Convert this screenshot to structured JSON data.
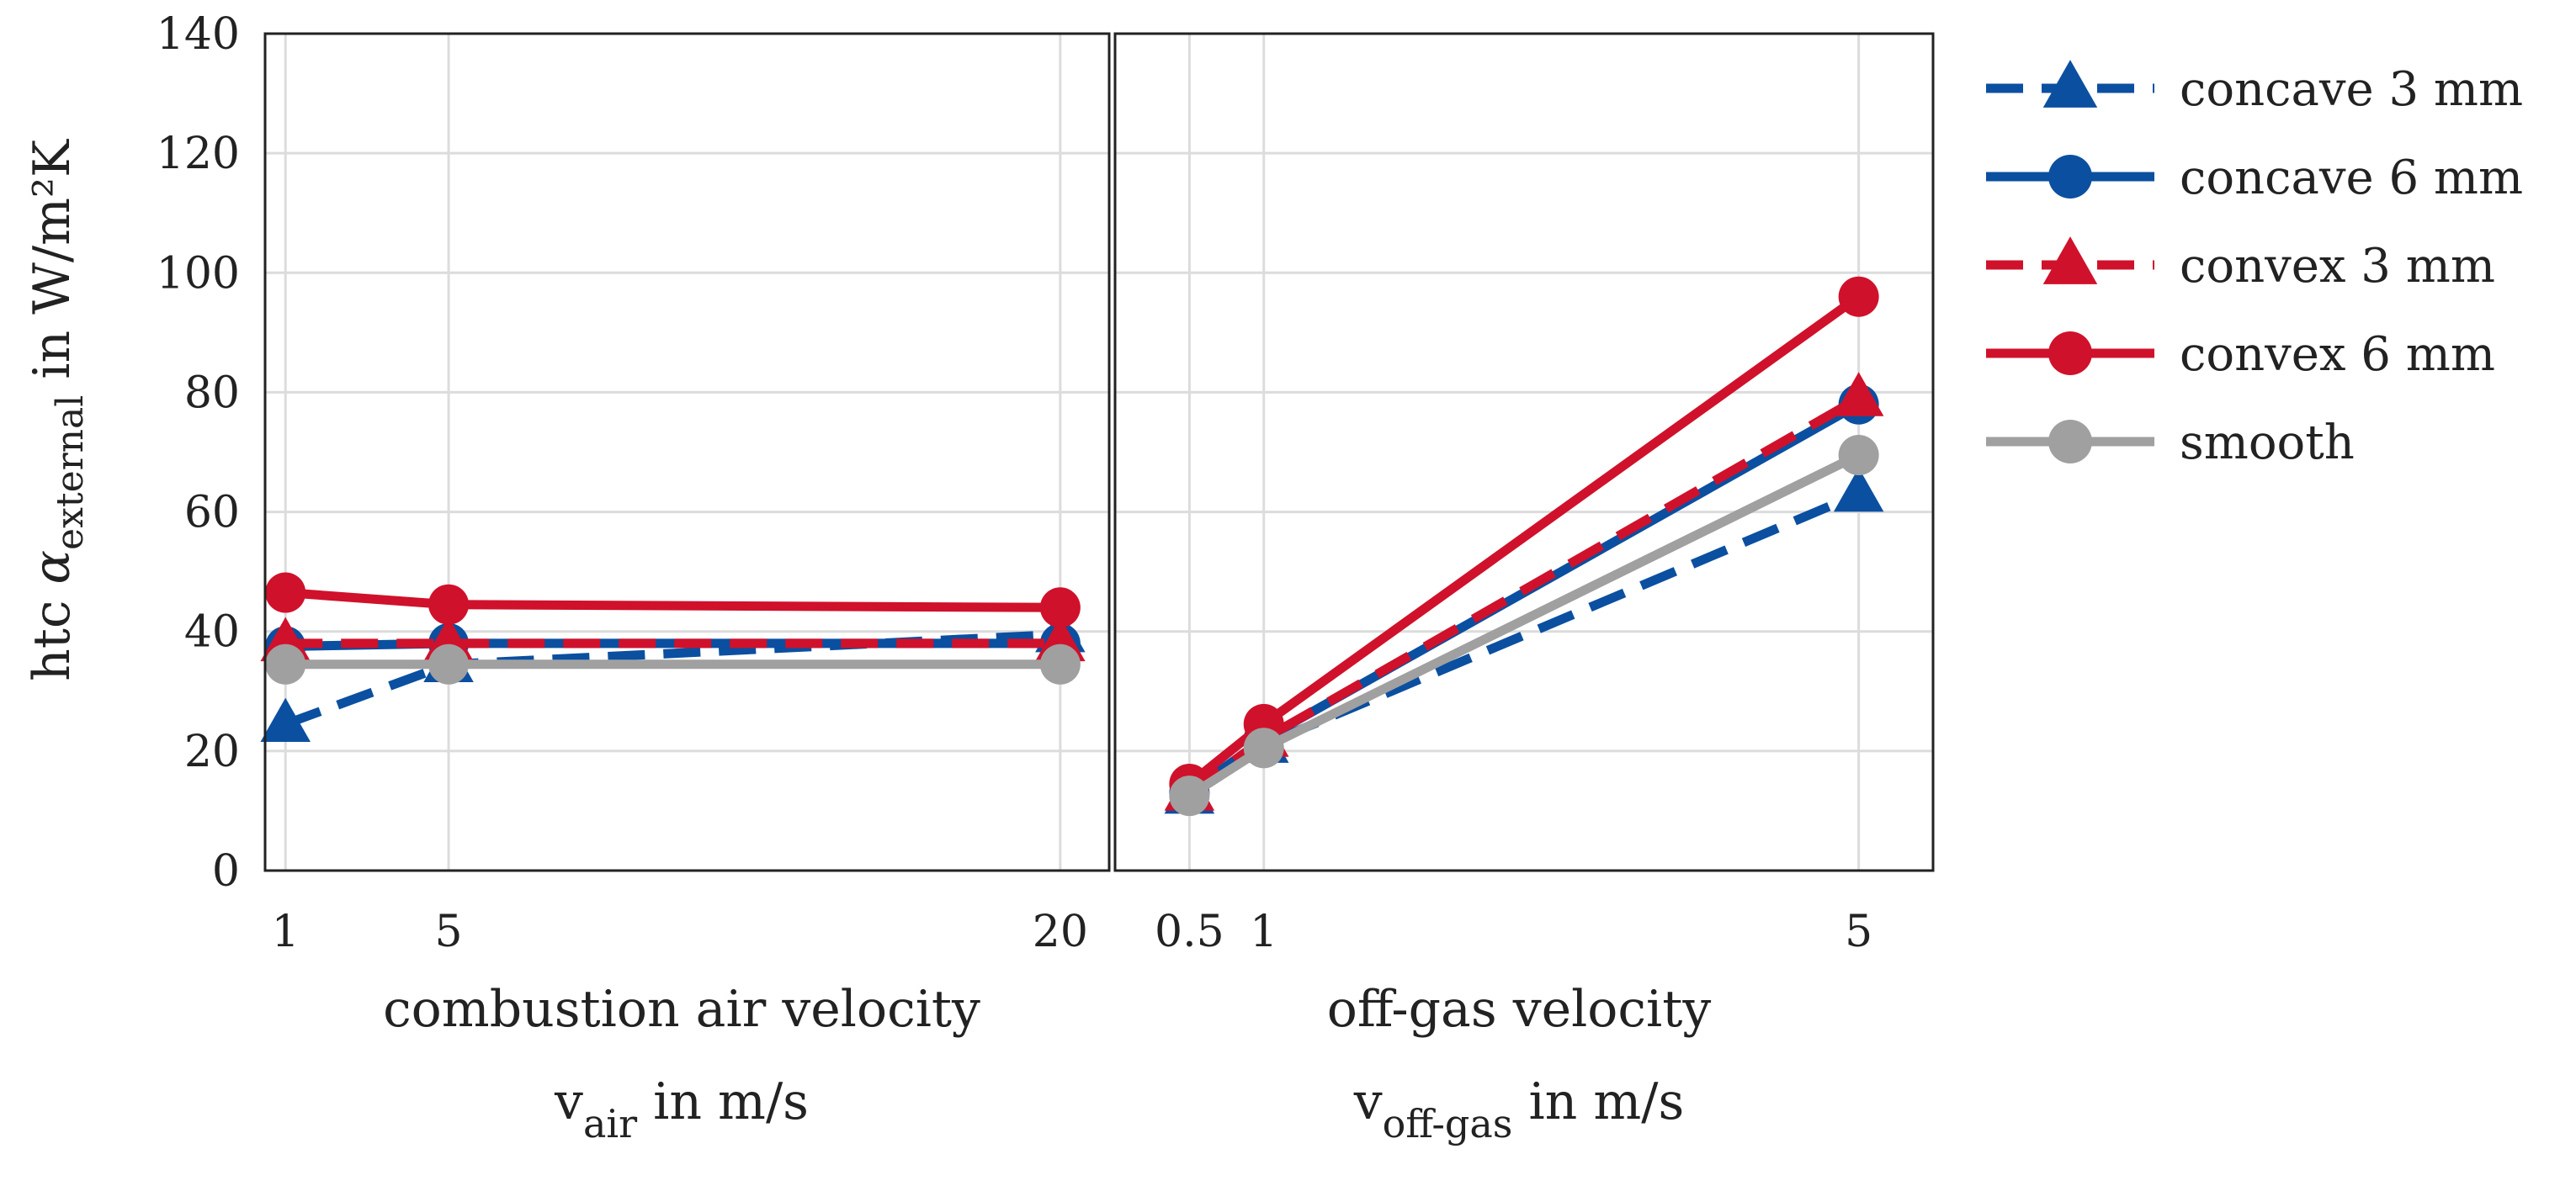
{
  "chart_data": {
    "type": "line",
    "ylabel_main": "htc ",
    "ylabel_alpha": "α",
    "ylabel_sub": "external",
    "ylabel_unit": " in W/m²K",
    "ylim": [
      0,
      140
    ],
    "yticks": [
      0,
      20,
      40,
      60,
      80,
      100,
      120,
      140
    ],
    "grid": true,
    "legend_position": "right",
    "panels": [
      {
        "id": "air",
        "xlabel_line1": "combustion air velocity",
        "xlabel_var": "v",
        "xlabel_sub": "air",
        "xlabel_unit": " in m/s",
        "xlim": [
          0.5,
          21.2
        ],
        "xticks": [
          1,
          5,
          20
        ],
        "x": [
          1,
          5,
          20
        ],
        "series": [
          {
            "name": "concave 3 mm",
            "values": [
              24.5,
              34.5,
              39.5
            ]
          },
          {
            "name": "concave 6 mm",
            "values": [
              37.5,
              38,
              38
            ]
          },
          {
            "name": "convex 3 mm",
            "values": [
              38,
              38,
              38
            ]
          },
          {
            "name": "convex 6 mm",
            "values": [
              46.5,
              44.5,
              44
            ]
          },
          {
            "name": "smooth",
            "values": [
              34.5,
              34.5,
              34.5
            ]
          }
        ]
      },
      {
        "id": "offgas",
        "xlabel_line1": "off-gas velocity",
        "xlabel_var": "v",
        "xlabel_sub": "off-gas",
        "xlabel_unit": " in m/s",
        "xlim": [
          0,
          5.5
        ],
        "xticks": [
          0.5,
          1,
          5
        ],
        "x": [
          0.5,
          1,
          5
        ],
        "series": [
          {
            "name": "concave 3 mm",
            "values": [
              12.5,
              21,
              63
            ]
          },
          {
            "name": "concave 6 mm",
            "values": [
              13,
              22,
              78
            ]
          },
          {
            "name": "convex 3 mm",
            "values": [
              13,
              22,
              79
            ]
          },
          {
            "name": "convex 6 mm",
            "values": [
              14.5,
              24.5,
              96
            ]
          },
          {
            "name": "smooth",
            "values": [
              12.5,
              20.5,
              69.5
            ]
          }
        ]
      }
    ],
    "series_styles": [
      {
        "name": "concave 3 mm",
        "color": "#0b4fa0",
        "dash": true,
        "marker": "triangle"
      },
      {
        "name": "concave 6 mm",
        "color": "#0b4fa0",
        "dash": false,
        "marker": "circle"
      },
      {
        "name": "convex 3 mm",
        "color": "#d0112b",
        "dash": true,
        "marker": "triangle"
      },
      {
        "name": "convex 6 mm",
        "color": "#d0112b",
        "dash": false,
        "marker": "circle"
      },
      {
        "name": "smooth",
        "color": "#a0a0a0",
        "dash": false,
        "marker": "circle"
      }
    ]
  }
}
